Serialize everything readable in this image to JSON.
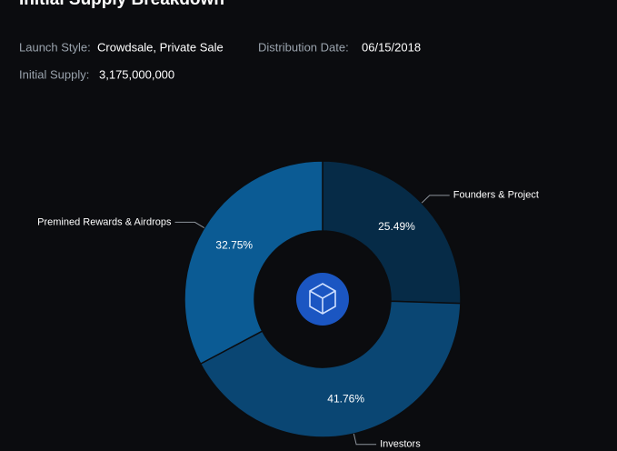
{
  "header": {
    "title": "Initial Supply Breakdown",
    "fields": [
      {
        "label": "Launch Style:",
        "value": "Crowdsale, Private Sale"
      },
      {
        "label": "Distribution Date:",
        "value": "06/15/2018"
      },
      {
        "label": "Initial Supply:",
        "value": "3,175,000,000"
      }
    ]
  },
  "chart_data": {
    "type": "donut",
    "categories": [
      "Founders & Project",
      "Investors",
      "Premined Rewards & Airdrops"
    ],
    "values": [
      25.49,
      41.76,
      32.75
    ],
    "value_labels": [
      "25.49%",
      "41.76%",
      "32.75%"
    ],
    "colors": [
      "#062b47",
      "#0a4673",
      "#0b5b94"
    ]
  }
}
